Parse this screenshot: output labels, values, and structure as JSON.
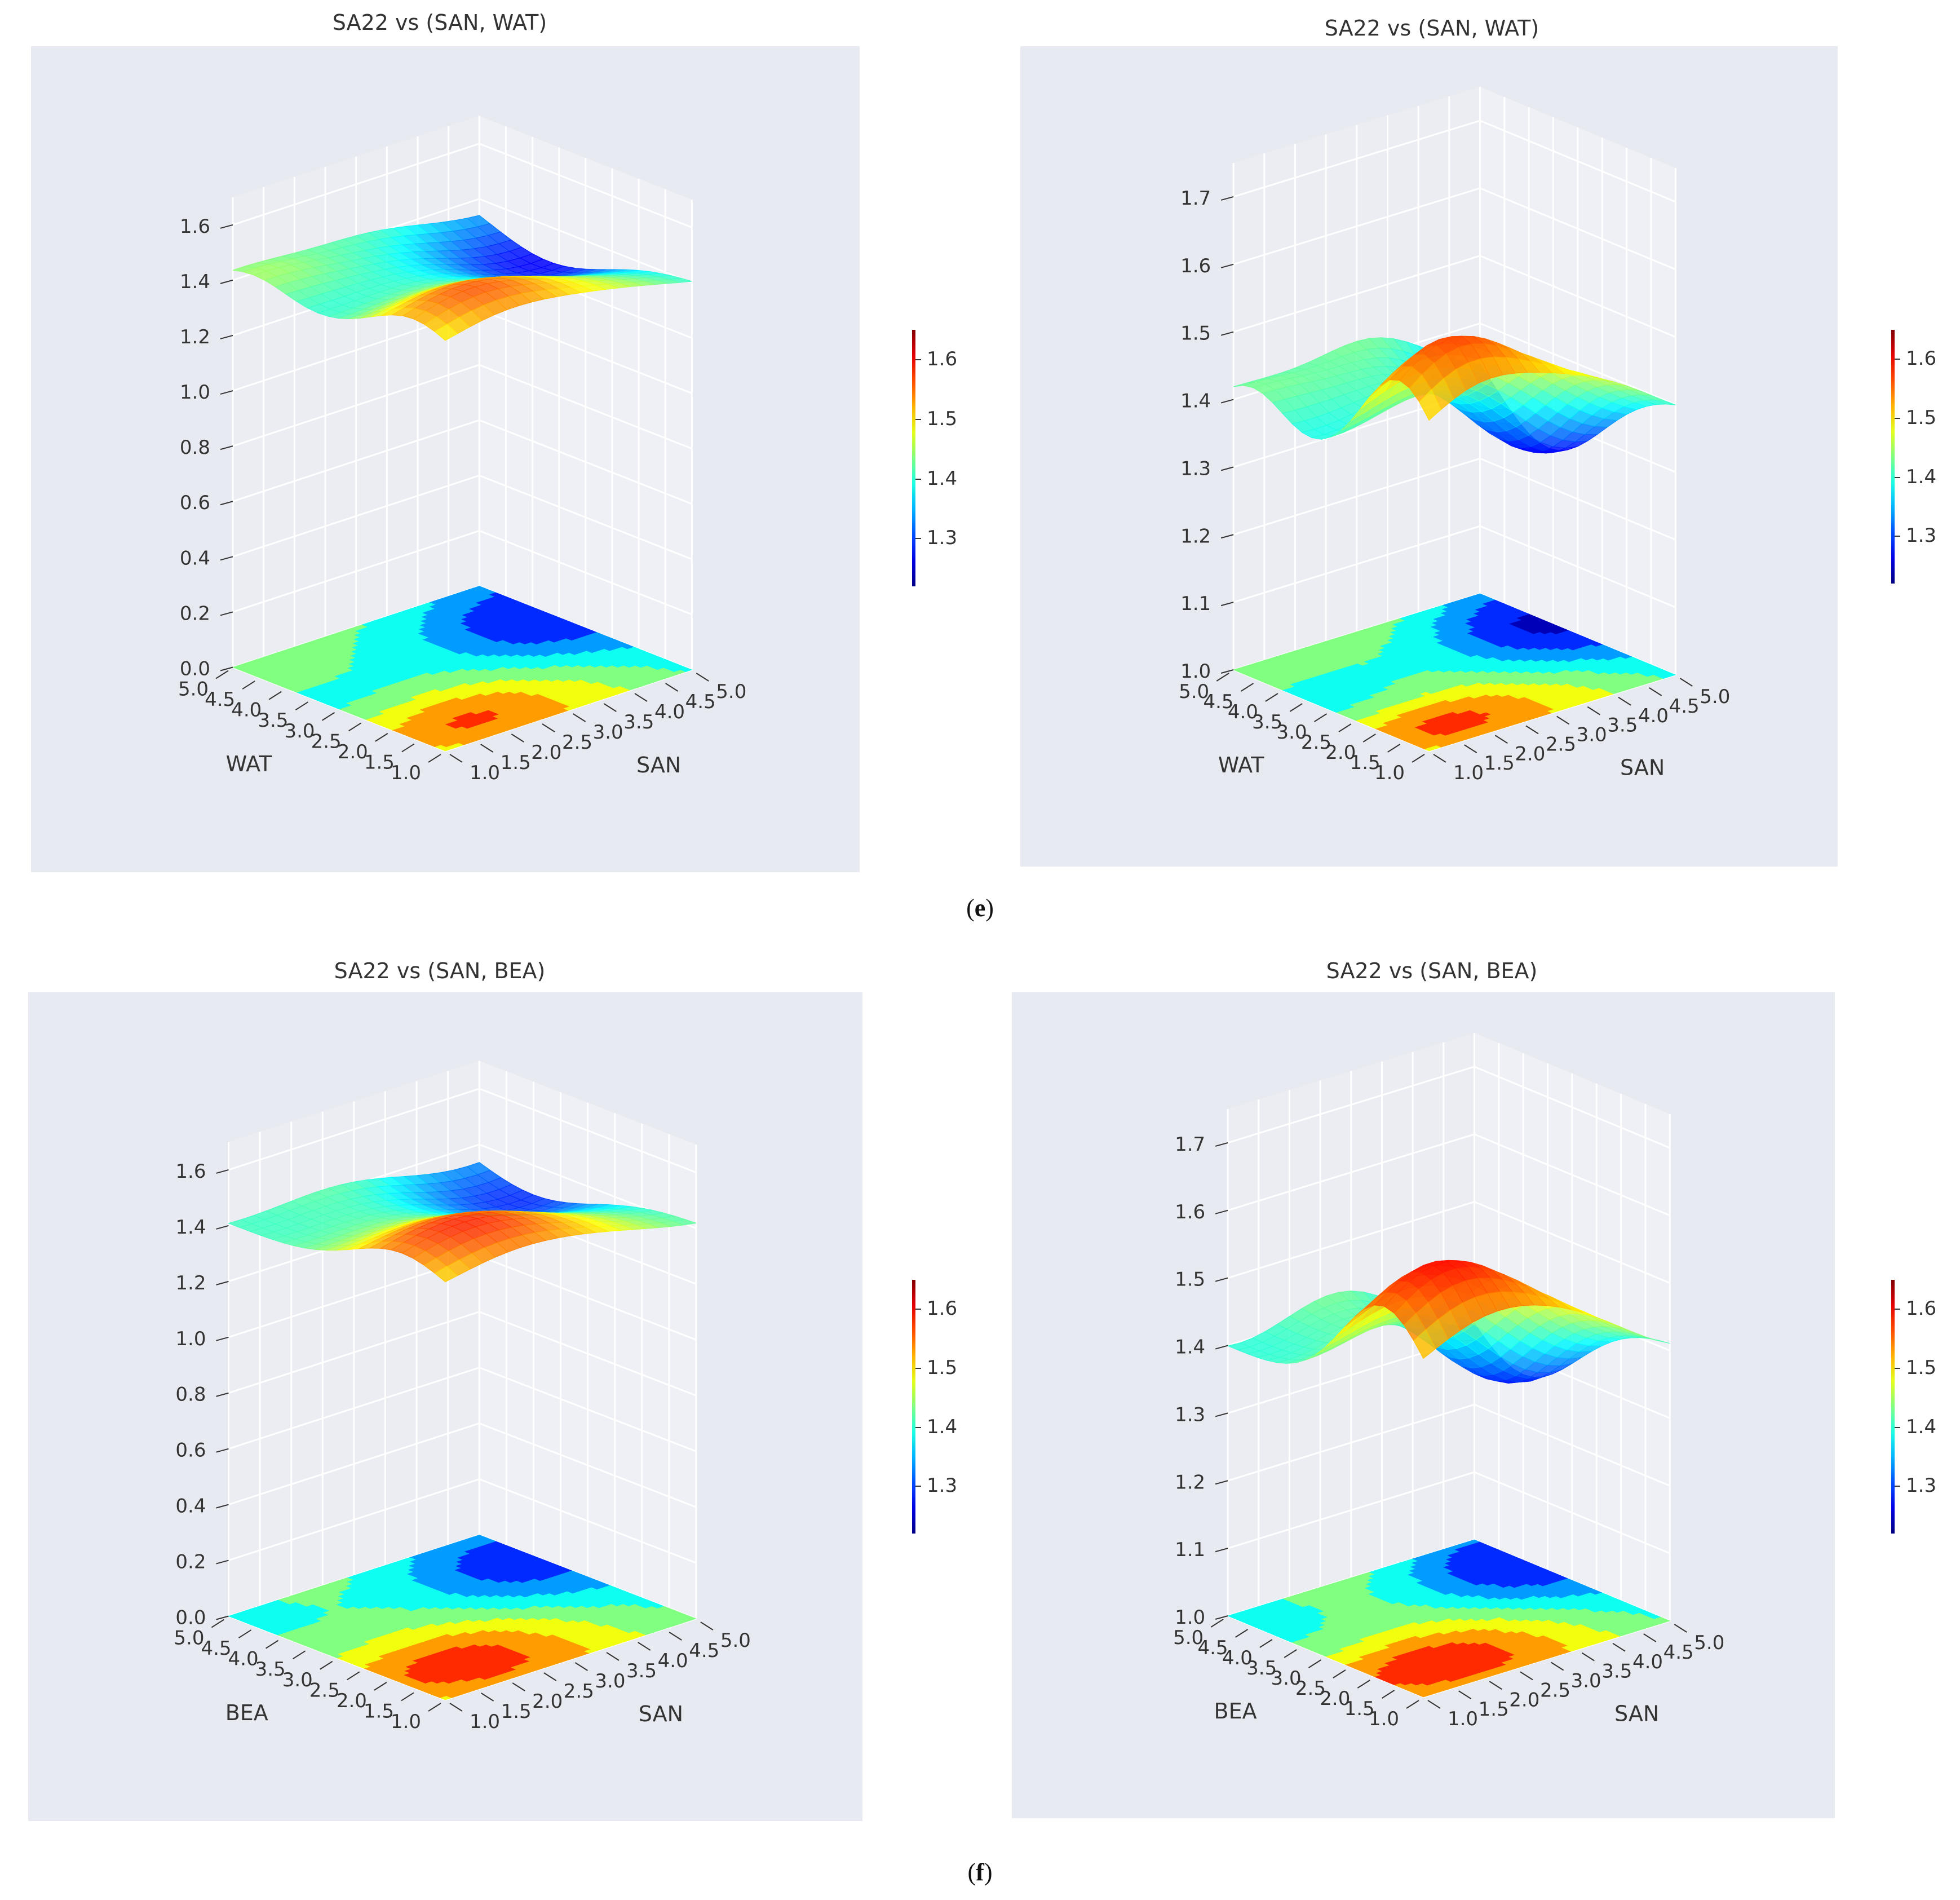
{
  "chart_data": [
    {
      "id": "e-left",
      "type": "surface3d",
      "title": "SA22 vs (SAN, WAT)",
      "xlabel": "WAT",
      "ylabel": "SAN",
      "zlabel": "",
      "x_ticks": [
        "1.0",
        "1.5",
        "2.0",
        "2.5",
        "3.0",
        "3.5",
        "4.0",
        "4.5",
        "5.0"
      ],
      "y_ticks": [
        "1.0",
        "1.5",
        "2.0",
        "2.5",
        "3.0",
        "3.5",
        "4.0",
        "4.5",
        "5.0"
      ],
      "z_ticks": [
        "0.0",
        "0.2",
        "0.4",
        "0.6",
        "0.8",
        "1.0",
        "1.2",
        "1.4",
        "1.6"
      ],
      "zlim": [
        0.0,
        1.7
      ],
      "colorbar": {
        "ticks": [
          "1.3",
          "1.4",
          "1.5",
          "1.6"
        ],
        "range": [
          1.22,
          1.65
        ],
        "cmap": "jet"
      },
      "offset_contour": true,
      "surface_level_range": [
        1.22,
        1.65
      ]
    },
    {
      "id": "e-right",
      "type": "surface3d",
      "title": "SA22 vs (SAN, WAT)",
      "xlabel": "WAT",
      "ylabel": "SAN",
      "zlabel": "",
      "x_ticks": [
        "1.0",
        "1.5",
        "2.0",
        "2.5",
        "3.0",
        "3.5",
        "4.0",
        "4.5",
        "5.0"
      ],
      "y_ticks": [
        "1.0",
        "1.5",
        "2.0",
        "2.5",
        "3.0",
        "3.5",
        "4.0",
        "4.5",
        "5.0"
      ],
      "z_ticks": [
        "1.0",
        "1.1",
        "1.2",
        "1.3",
        "1.4",
        "1.5",
        "1.6",
        "1.7"
      ],
      "zlim": [
        1.0,
        1.75
      ],
      "colorbar": {
        "ticks": [
          "1.3",
          "1.4",
          "1.5",
          "1.6"
        ],
        "range": [
          1.22,
          1.65
        ],
        "cmap": "jet"
      },
      "offset_contour": true,
      "surface_level_range": [
        1.22,
        1.65
      ]
    },
    {
      "id": "f-left",
      "type": "surface3d",
      "title": "SA22 vs (SAN, BEA)",
      "xlabel": "BEA",
      "ylabel": "SAN",
      "zlabel": "",
      "x_ticks": [
        "1.0",
        "1.5",
        "2.0",
        "2.5",
        "3.0",
        "3.5",
        "4.0",
        "4.5",
        "5.0"
      ],
      "y_ticks": [
        "1.0",
        "1.5",
        "2.0",
        "2.5",
        "3.0",
        "3.5",
        "4.0",
        "4.5",
        "5.0"
      ],
      "z_ticks": [
        "0.0",
        "0.2",
        "0.4",
        "0.6",
        "0.8",
        "1.0",
        "1.2",
        "1.4",
        "1.6"
      ],
      "zlim": [
        0.0,
        1.7
      ],
      "colorbar": {
        "ticks": [
          "1.3",
          "1.4",
          "1.5",
          "1.6"
        ],
        "range": [
          1.22,
          1.65
        ],
        "cmap": "jet"
      },
      "offset_contour": true,
      "surface_level_range": [
        1.22,
        1.65
      ]
    },
    {
      "id": "f-right",
      "type": "surface3d",
      "title": "SA22 vs (SAN, BEA)",
      "xlabel": "BEA",
      "ylabel": "SAN",
      "zlabel": "",
      "x_ticks": [
        "1.0",
        "1.5",
        "2.0",
        "2.5",
        "3.0",
        "3.5",
        "4.0",
        "4.5",
        "5.0"
      ],
      "y_ticks": [
        "1.0",
        "1.5",
        "2.0",
        "2.5",
        "3.0",
        "3.5",
        "4.0",
        "4.5",
        "5.0"
      ],
      "z_ticks": [
        "1.0",
        "1.1",
        "1.2",
        "1.3",
        "1.4",
        "1.5",
        "1.6",
        "1.7"
      ],
      "zlim": [
        1.0,
        1.75
      ],
      "colorbar": {
        "ticks": [
          "1.3",
          "1.4",
          "1.5",
          "1.6"
        ],
        "range": [
          1.22,
          1.65
        ],
        "cmap": "jet"
      },
      "offset_contour": true,
      "surface_level_range": [
        1.22,
        1.65
      ]
    }
  ],
  "captions": {
    "e": {
      "open": "(",
      "letter": "e",
      "close": ")"
    },
    "f": {
      "open": "(",
      "letter": "f",
      "close": ")"
    }
  }
}
